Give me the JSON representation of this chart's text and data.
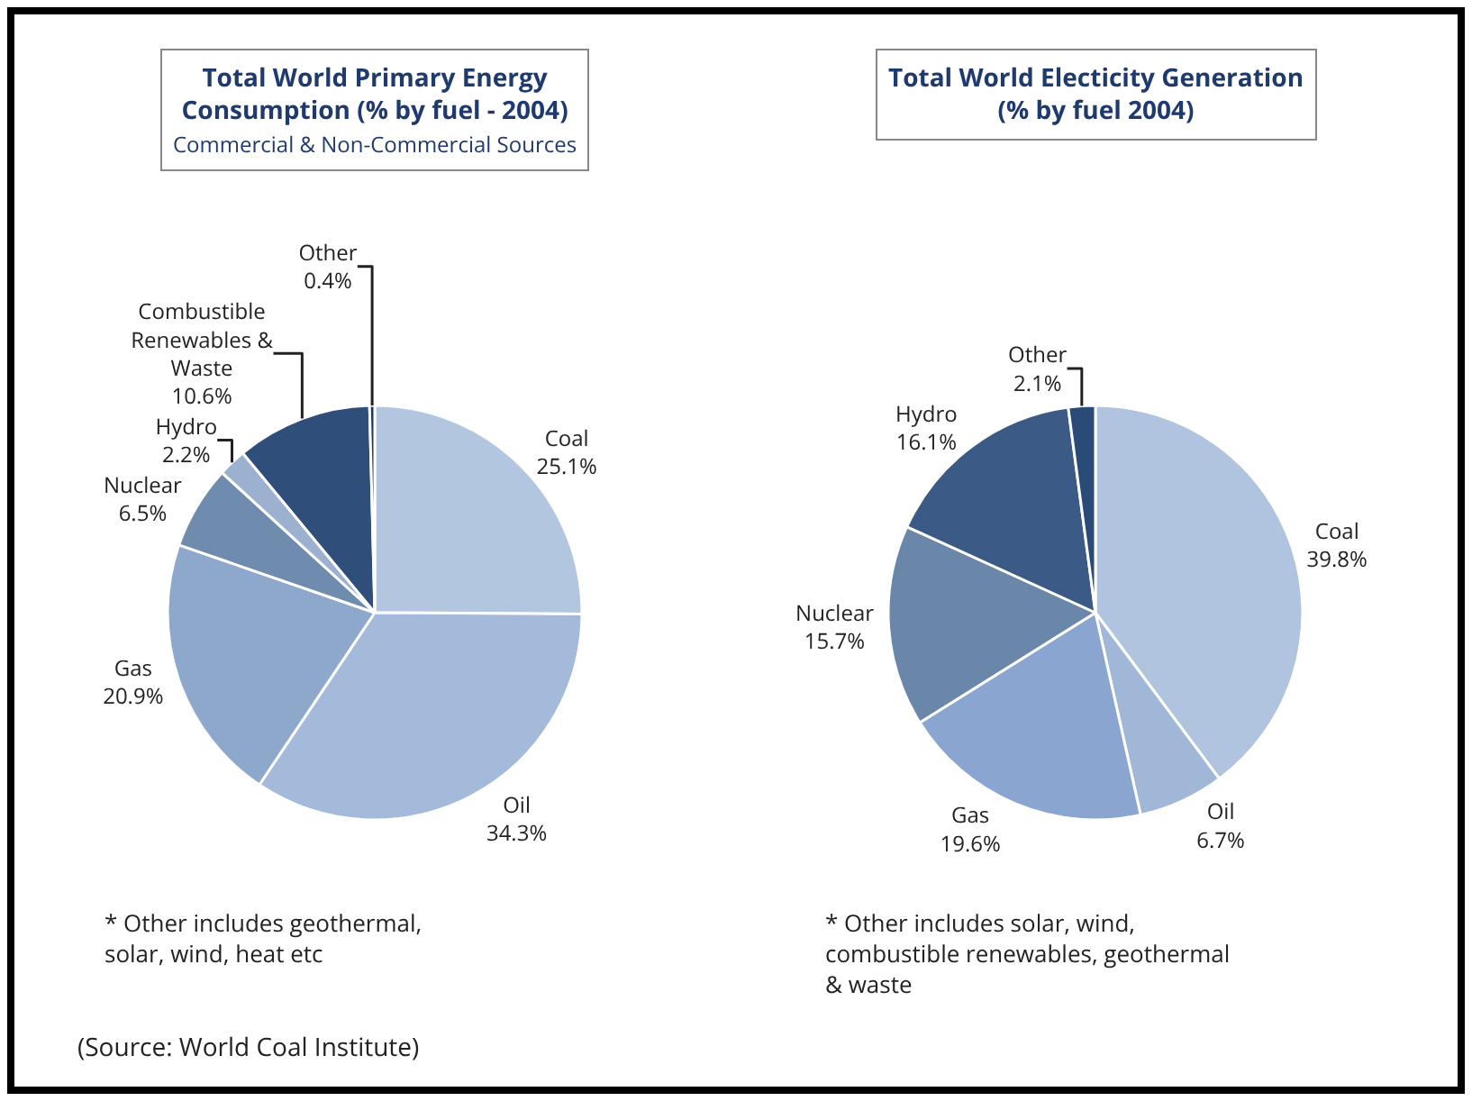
{
  "chart_data": [
    {
      "type": "pie",
      "title": "Total World Primary Energy Consumption (% by fuel - 2004)",
      "subtitle": "Commercial & Non-Commercial Sources",
      "categories": [
        "Coal",
        "Oil",
        "Gas",
        "Nuclear",
        "Hydro",
        "Combustible Renewables & Waste",
        "Other"
      ],
      "values": [
        25.1,
        34.3,
        20.9,
        6.5,
        2.2,
        10.6,
        0.4
      ],
      "value_labels": [
        "25.1%",
        "34.3%",
        "20.9%",
        "6.5%",
        "2.2%",
        "10.6%",
        "0.4%"
      ],
      "colors": [
        "#b3c6e0",
        "#a4bada",
        "#8ea8cc",
        "#6f8bad",
        "#9cb1cf",
        "#2f4e79",
        "#1d3864"
      ],
      "annotations": [
        "* Other includes geothermal, solar, wind, heat etc",
        "(Source: World Coal Institute)"
      ],
      "legend": false
    },
    {
      "type": "pie",
      "title": "Total World Electicity Generation (% by fuel 2004)",
      "categories": [
        "Coal",
        "Oil",
        "Gas",
        "Nuclear",
        "Hydro",
        "Other"
      ],
      "values": [
        39.8,
        6.7,
        19.6,
        15.7,
        16.1,
        2.1
      ],
      "value_labels": [
        "39.8%",
        "6.7%",
        "19.6%",
        "15.7%",
        "16.1%",
        "2.1%"
      ],
      "colors": [
        "#b0c4e0",
        "#a0b7d7",
        "#8aa5cf",
        "#6a86a8",
        "#3b5b86",
        "#2a4a78"
      ],
      "annotations": [
        "* Other includes solar, wind, combustible renewables, geothermal & waste"
      ],
      "legend": false
    }
  ]
}
